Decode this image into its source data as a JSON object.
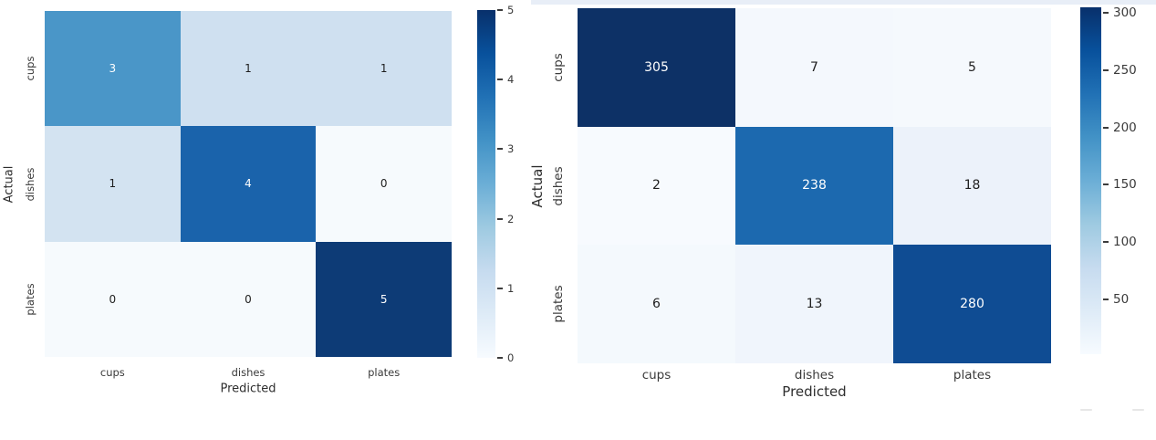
{
  "chart_data": [
    {
      "type": "heatmap",
      "name": "confusion-matrix-small",
      "xlabel": "Predicted",
      "ylabel": "Actual",
      "x_categories": [
        "cups",
        "dishes",
        "plates"
      ],
      "y_categories": [
        "cups",
        "dishes",
        "plates"
      ],
      "values": [
        [
          3,
          1,
          1
        ],
        [
          1,
          4,
          0
        ],
        [
          0,
          0,
          5
        ]
      ],
      "colormap": "Blues",
      "vmin": 0,
      "vmax": 5,
      "colorbar_ticks": [
        5,
        4,
        3,
        2,
        1,
        0
      ],
      "legend_position": "right-colorbar",
      "grid": "off",
      "cell_colors": [
        [
          "#4a96c8",
          "#cfe0f0",
          "#cfe0f0"
        ],
        [
          "#d3e3f1",
          "#1a63ab",
          "#f6fafd"
        ],
        [
          "#f6fafd",
          "#f6fafd",
          "#0d3b76"
        ]
      ],
      "cell_text_colors": [
        [
          "#ffffff",
          "#1e1e1e",
          "#1e1e1e"
        ],
        [
          "#1e1e1e",
          "#ffffff",
          "#1e1e1e"
        ],
        [
          "#1e1e1e",
          "#1e1e1e",
          "#ffffff"
        ]
      ],
      "gradient": [
        "#08306b",
        "#08519c",
        "#2171b5",
        "#4292c6",
        "#6baed6",
        "#9ecae1",
        "#c6dbef",
        "#deebf7",
        "#f7fbff"
      ]
    },
    {
      "type": "heatmap",
      "name": "confusion-matrix-large",
      "xlabel": "Predicted",
      "ylabel": "Actual",
      "x_categories": [
        "cups",
        "dishes",
        "plates"
      ],
      "y_categories": [
        "cups",
        "dishes",
        "plates"
      ],
      "values": [
        [
          305,
          7,
          5
        ],
        [
          2,
          238,
          18
        ],
        [
          6,
          13,
          280
        ]
      ],
      "colormap": "Blues",
      "vmin": 2,
      "vmax": 305,
      "colorbar_ticks": [
        300,
        250,
        200,
        150,
        100,
        50
      ],
      "legend_position": "right-colorbar",
      "grid": "off",
      "cell_colors": [
        [
          "#0d3166",
          "#f4f8fd",
          "#f5f9fd"
        ],
        [
          "#f7fafe",
          "#1c69af",
          "#ecf2fa"
        ],
        [
          "#f4f9fd",
          "#f0f5fc",
          "#0f4c93"
        ]
      ],
      "cell_text_colors": [
        [
          "#ffffff",
          "#1e1e1e",
          "#1e1e1e"
        ],
        [
          "#1e1e1e",
          "#ffffff",
          "#1e1e1e"
        ],
        [
          "#1e1e1e",
          "#1e1e1e",
          "#ffffff"
        ]
      ],
      "gradient": [
        "#08306b",
        "#08519c",
        "#2171b5",
        "#4292c6",
        "#6baed6",
        "#9ecae1",
        "#c6dbef",
        "#deebf7",
        "#f7fbff"
      ]
    }
  ]
}
